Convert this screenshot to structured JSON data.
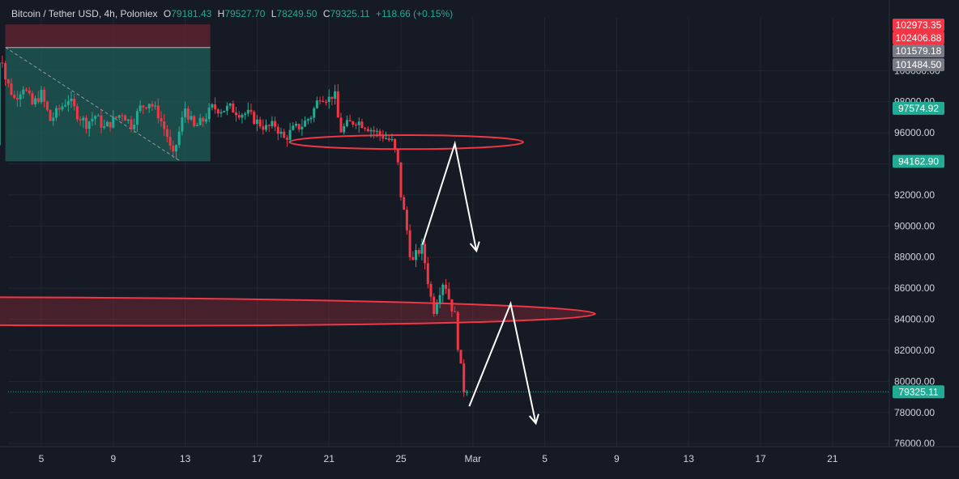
{
  "legend": {
    "symbol": "Bitcoin / Tether USD, 4h, Poloniex",
    "o_label": "O",
    "o_value": "79181.43",
    "h_label": "H",
    "h_value": "79527.70",
    "l_label": "L",
    "l_value": "78249.50",
    "c_label": "C",
    "c_value": "79325.11",
    "change": "+118.66 (+0.15%)"
  },
  "colors": {
    "background": "#161a25",
    "grid": "#232733",
    "up": "#22ab94",
    "down": "#f23645",
    "axis_text": "#d1d4dc",
    "ellipse": "#f23645",
    "arrow": "#ffffff",
    "box_profit": "#1f5e55",
    "box_loss": "#5c2330"
  },
  "chart_data": {
    "type": "candlestick",
    "x_ticks": [
      "5",
      "9",
      "13",
      "17",
      "21",
      "25",
      "Mar",
      "5",
      "9",
      "13",
      "17",
      "21"
    ],
    "y_ticks": [
      "100000.00",
      "98000.00",
      "96000.00",
      "94000.00",
      "92000.00",
      "90000.00",
      "88000.00",
      "86000.00",
      "84000.00",
      "82000.00",
      "80000.00",
      "78000.00",
      "76000.00"
    ],
    "ylim": [
      75800,
      103400
    ],
    "price_labels": [
      {
        "text": "102973.35",
        "value": 102973.35,
        "color": "#f23645"
      },
      {
        "text": "102406.88",
        "value": 102406.88,
        "color": "#f23645"
      },
      {
        "text": "101579.18",
        "value": 101579.18,
        "color": "#787b86"
      },
      {
        "text": "101484.50",
        "value": 101484.5,
        "color": "#787b86"
      },
      {
        "text": "97574.92",
        "value": 97574.92,
        "color": "#22ab94"
      },
      {
        "text": "94162.90",
        "value": 94162.9,
        "color": "#22ab94"
      },
      {
        "text": "79325.11",
        "value": 79325.11,
        "color": "#22ab94"
      }
    ],
    "last_price": 79325.11,
    "price_path": [
      [
        2.5,
        95200
      ],
      [
        2.7,
        101800
      ],
      [
        3.0,
        99500
      ],
      [
        3.5,
        98200
      ],
      [
        4.0,
        99000
      ],
      [
        4.5,
        97800
      ],
      [
        5.0,
        98500
      ],
      [
        5.5,
        96800
      ],
      [
        6.0,
        97500
      ],
      [
        6.5,
        98200
      ],
      [
        7.0,
        97200
      ],
      [
        7.5,
        96600
      ],
      [
        8.0,
        97100
      ],
      [
        8.5,
        96300
      ],
      [
        9.0,
        96800
      ],
      [
        9.5,
        97300
      ],
      [
        10.0,
        96500
      ],
      [
        10.5,
        97600
      ],
      [
        11.0,
        98000
      ],
      [
        11.5,
        97200
      ],
      [
        12.0,
        95800
      ],
      [
        12.3,
        94300
      ],
      [
        12.7,
        96200
      ],
      [
        13.0,
        97600
      ],
      [
        13.5,
        96300
      ],
      [
        14.0,
        96800
      ],
      [
        14.5,
        97600
      ],
      [
        15.0,
        97500
      ],
      [
        15.5,
        97600
      ],
      [
        16.0,
        97300
      ],
      [
        16.5,
        97200
      ],
      [
        17.0,
        96700
      ],
      [
        17.5,
        96300
      ],
      [
        18.0,
        96500
      ],
      [
        18.5,
        95600
      ],
      [
        19.0,
        96200
      ],
      [
        19.5,
        96500
      ],
      [
        20.0,
        97100
      ],
      [
        20.5,
        98400
      ],
      [
        21.0,
        98200
      ],
      [
        21.3,
        98600
      ],
      [
        21.6,
        96100
      ],
      [
        22.0,
        96500
      ],
      [
        22.5,
        96800
      ],
      [
        23.0,
        96500
      ],
      [
        23.5,
        96100
      ],
      [
        24.0,
        95800
      ],
      [
        24.5,
        95400
      ],
      [
        24.8,
        94300
      ],
      [
        25.0,
        92000
      ],
      [
        25.3,
        90000
      ],
      [
        25.6,
        87500
      ],
      [
        25.9,
        88300
      ],
      [
        26.2,
        88600
      ],
      [
        26.5,
        86500
      ],
      [
        26.8,
        84500
      ],
      [
        27.1,
        85700
      ],
      [
        27.4,
        86600
      ],
      [
        27.7,
        85200
      ],
      [
        28.0,
        84200
      ],
      [
        28.2,
        82000
      ],
      [
        28.4,
        80200
      ],
      [
        28.6,
        78800
      ],
      [
        28.8,
        79325.11
      ]
    ],
    "annotations": [
      {
        "type": "position_box",
        "x_range": [
          3.0,
          14.4
        ],
        "entry": 101484.5,
        "stop": 102973.35,
        "target": 94162.9
      },
      {
        "type": "trend_line",
        "points": [
          [
            3.0,
            101500
          ],
          [
            12.7,
            94200
          ]
        ]
      },
      {
        "type": "ellipse",
        "center": [
          25.3,
          95400
        ],
        "x_radius": 6.5,
        "y_radius": 450
      },
      {
        "type": "ellipse",
        "center": [
          5.8,
          84500
        ],
        "x_radius": 30.0,
        "y_radius": 900,
        "tilt_end": [
          34.0,
          84500
        ]
      },
      {
        "type": "arrow",
        "points": [
          [
            26.2,
            88800
          ],
          [
            28.0,
            95300
          ],
          [
            29.2,
            88400
          ]
        ]
      },
      {
        "type": "arrow",
        "points": [
          [
            28.8,
            78400
          ],
          [
            31.1,
            85000
          ],
          [
            32.5,
            77300
          ]
        ]
      }
    ]
  }
}
